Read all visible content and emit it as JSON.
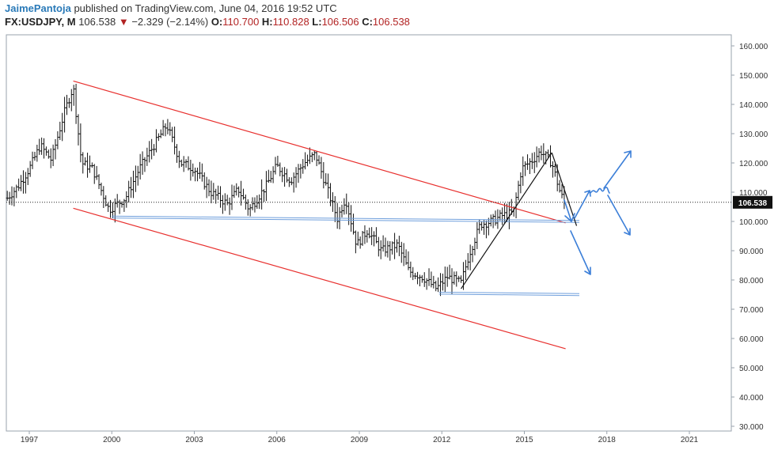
{
  "header": {
    "author": "JaimePantoja",
    "published_text": "published on TradingView.com, June 04, 2016 19:52 UTC",
    "symbol": "FX:USDJPY, M",
    "last": "106.538",
    "change_arrow": "▼",
    "change": "−2.329 (−2.14%)",
    "open_label": "O:",
    "open": "110.700",
    "high_label": "H:",
    "high": "110.828",
    "low_label": "L:",
    "low": "106.506",
    "close_label": "C:",
    "close": "106.538"
  },
  "colors": {
    "channel": "#e8302e",
    "support": "#6f9fdc",
    "trend": "#111111",
    "arrows": "#3c7fd8",
    "price_tag_bg": "#111111"
  },
  "chart_data": {
    "type": "ohlc",
    "x_ticks": [
      "1997",
      "2000",
      "2003",
      "2006",
      "2009",
      "2012",
      "2015",
      "2018",
      "2021"
    ],
    "y_ticks": [
      "160.000",
      "150.000",
      "140.000",
      "130.000",
      "120.000",
      "110.000",
      "100.000",
      "90.000",
      "80.000",
      "70.000",
      "60.000",
      "50.000",
      "40.000",
      "30.000"
    ],
    "ylim": [
      30,
      160
    ],
    "xlim": [
      1996.2,
      2022.4
    ],
    "last_price": 106.538,
    "last_price_label": "106.538",
    "anchor_series": [
      [
        1996.2,
        108
      ],
      [
        1996.6,
        112
      ],
      [
        1997.0,
        118
      ],
      [
        1997.4,
        126
      ],
      [
        1997.8,
        121
      ],
      [
        1998.3,
        138
      ],
      [
        1998.6,
        146
      ],
      [
        1998.9,
        120
      ],
      [
        1999.3,
        118
      ],
      [
        1999.9,
        104
      ],
      [
        2000.5,
        108
      ],
      [
        2001.0,
        118
      ],
      [
        2001.4,
        124
      ],
      [
        2002.0,
        133
      ],
      [
        2002.5,
        120
      ],
      [
        2003.0,
        118
      ],
      [
        2003.6,
        110
      ],
      [
        2004.2,
        106
      ],
      [
        2004.6,
        111
      ],
      [
        2005.0,
        104
      ],
      [
        2005.6,
        112
      ],
      [
        2006.0,
        119
      ],
      [
        2006.5,
        114
      ],
      [
        2007.0,
        120
      ],
      [
        2007.4,
        123
      ],
      [
        2007.8,
        112
      ],
      [
        2008.2,
        101
      ],
      [
        2008.5,
        108
      ],
      [
        2008.9,
        92
      ],
      [
        2009.3,
        97
      ],
      [
        2009.8,
        90
      ],
      [
        2010.4,
        92
      ],
      [
        2010.8,
        83
      ],
      [
        2011.3,
        81
      ],
      [
        2011.8,
        77
      ],
      [
        2012.2,
        81
      ],
      [
        2012.7,
        79
      ],
      [
        2013.0,
        89
      ],
      [
        2013.4,
        99
      ],
      [
        2013.8,
        100
      ],
      [
        2014.2,
        102
      ],
      [
        2014.6,
        103
      ],
      [
        2014.9,
        118
      ],
      [
        2015.3,
        121
      ],
      [
        2015.6,
        124
      ],
      [
        2016.0,
        120
      ],
      [
        2016.3,
        110
      ],
      [
        2016.45,
        106.5
      ]
    ],
    "drawings": {
      "channel_upper": [
        [
          1998.6,
          148
        ],
        [
          2016.5,
          99.5
        ]
      ],
      "channel_lower": [
        [
          1998.6,
          104.5
        ],
        [
          2016.5,
          56.5
        ]
      ],
      "support_upper": [
        [
          2000.0,
          101.5
        ],
        [
          2017.0,
          100
        ]
      ],
      "support_lower": [
        [
          2011.9,
          75.5
        ],
        [
          2017.0,
          75
        ]
      ],
      "trend_up": [
        [
          2012.7,
          77
        ],
        [
          2016.0,
          123.5
        ]
      ],
      "trend_down": [
        [
          2016.0,
          123.5
        ],
        [
          2016.9,
          98.5
        ]
      ]
    }
  }
}
